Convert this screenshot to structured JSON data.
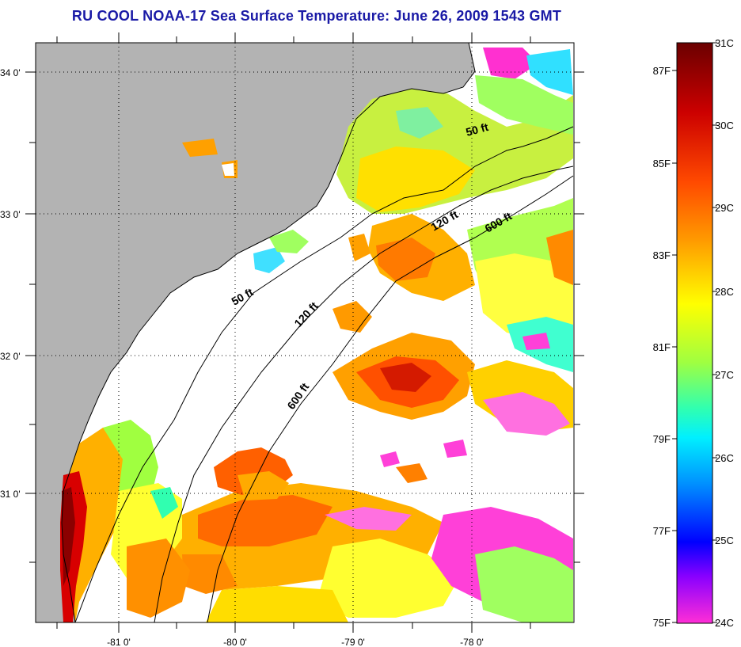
{
  "title": "RU COOL  NOAA-17  Sea Surface Temperature:  June 26, 2009 1543 GMT",
  "lat_labels": [
    "34 0'",
    "33 0'",
    "32 0'",
    "31 0'"
  ],
  "lon_labels": [
    "-81 0'",
    "-80 0'",
    "-79 0'",
    "-78 0'"
  ],
  "contours": {
    "shallow": [
      "50 ft",
      "50 ft"
    ],
    "mid": [
      "120 ft",
      "120 ft"
    ],
    "deep": [
      "600 ft",
      "600 ft"
    ]
  },
  "colorbar": {
    "celsius": [
      "31C",
      "30C",
      "29C",
      "28C",
      "27C",
      "26C",
      "25C",
      "24C"
    ],
    "fahrenheit": [
      "87F",
      "85F",
      "83F",
      "81F",
      "79F",
      "77F",
      "75F"
    ]
  },
  "colors": {
    "land": "#b3b3b3",
    "title": "#1a1aa6",
    "colorbar_stops": [
      "#7a0000",
      "#d40000",
      "#ff5500",
      "#ffa000",
      "#ffff00",
      "#b0ff40",
      "#30ffb0",
      "#00e6ff",
      "#0080ff",
      "#0000ff",
      "#8000ff",
      "#ff30d0"
    ]
  }
}
